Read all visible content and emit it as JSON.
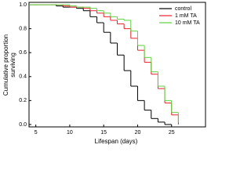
{
  "chart_data": {
    "type": "step",
    "xlabel": "Lifespan (days)",
    "ylabel": [
      "Cumulative proportion",
      "surviving"
    ],
    "x": [
      4,
      5,
      6,
      7,
      8,
      9,
      10,
      11,
      12,
      13,
      14,
      15,
      16,
      17,
      18,
      19,
      20,
      21,
      22,
      23,
      24,
      25,
      26
    ],
    "series": [
      {
        "name": "control",
        "color": "#000000",
        "values": [
          1.0,
          1.0,
          1.0,
          1.0,
          0.99,
          0.98,
          0.98,
          0.97,
          0.95,
          0.9,
          0.85,
          0.77,
          0.68,
          0.58,
          0.45,
          0.32,
          0.2,
          0.12,
          0.05,
          0.02,
          0.0,
          null,
          null
        ]
      },
      {
        "name": "1 mM TA",
        "color": "#e8202a",
        "values": [
          1.0,
          1.0,
          1.0,
          1.0,
          1.0,
          0.99,
          0.98,
          0.98,
          0.97,
          0.95,
          0.93,
          0.9,
          0.87,
          0.84,
          0.8,
          0.72,
          0.62,
          0.52,
          0.42,
          0.3,
          0.18,
          0.08,
          0.0
        ]
      },
      {
        "name": "10 mM TA",
        "color": "#5cd13c",
        "values": [
          1.0,
          1.0,
          1.0,
          1.0,
          1.0,
          1.0,
          0.99,
          0.98,
          0.98,
          0.97,
          0.95,
          0.93,
          0.9,
          0.88,
          0.87,
          0.78,
          0.66,
          0.56,
          0.44,
          0.32,
          0.2,
          0.1,
          0.02
        ]
      }
    ],
    "xlim": [
      4,
      30
    ],
    "xticks": [
      5,
      10,
      15,
      20,
      25
    ],
    "ylim": [
      -0.02,
      1.02
    ],
    "yticks": [
      {
        "value": 0,
        "label": "0.0"
      },
      {
        "value": 0.2,
        "label": "0.2"
      },
      {
        "value": 0.4,
        "label": "0.4"
      },
      {
        "value": 0.6,
        "label": "0.6"
      },
      {
        "value": 0.8,
        "label": "0.8"
      },
      {
        "value": 1,
        "label": "1.0"
      }
    ],
    "legend": "upper right"
  }
}
